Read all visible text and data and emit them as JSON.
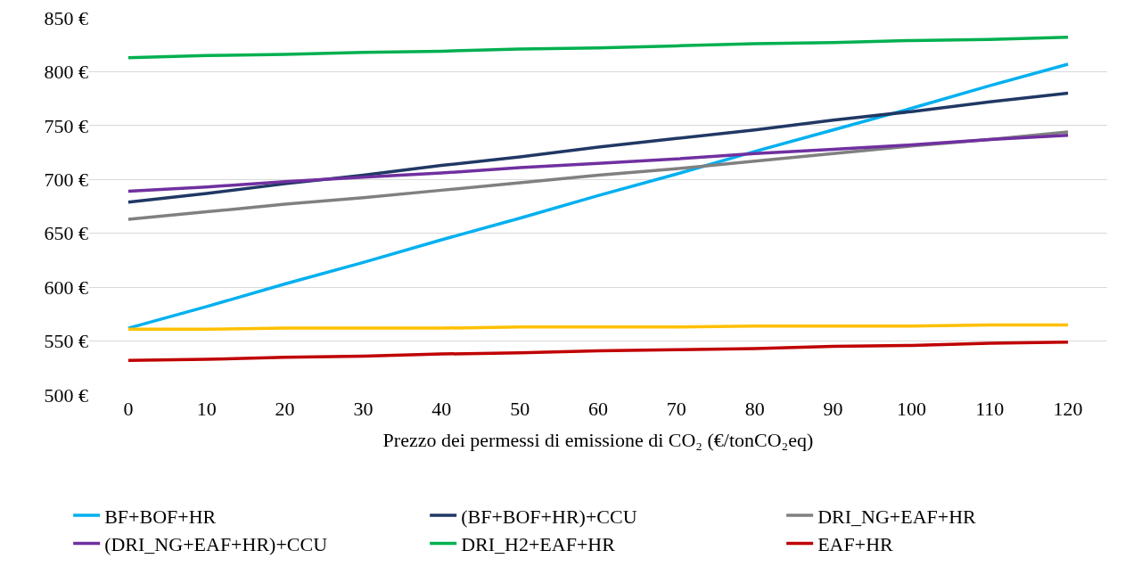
{
  "chart_data": {
    "type": "line",
    "xlabel": "Prezzo dei permessi di emissione di CO₂ (€/tonCO₂eq)",
    "categories": [
      "0",
      "10",
      "20",
      "30",
      "40",
      "50",
      "60",
      "70",
      "80",
      "90",
      "100",
      "110",
      "120"
    ],
    "series": [
      {
        "name": "BF+BOF+HR",
        "color": "#00b0f0",
        "values": [
          562,
          582,
          603,
          623,
          644,
          664,
          685,
          705,
          726,
          746,
          766,
          787,
          807
        ]
      },
      {
        "name": "(BF+BOF+HR)+CCU",
        "color": "#203864",
        "values": [
          679,
          687,
          696,
          704,
          713,
          721,
          730,
          738,
          746,
          755,
          763,
          772,
          780
        ]
      },
      {
        "name": "DRI_NG+EAF+HR",
        "color": "#808080",
        "values": [
          663,
          670,
          677,
          683,
          690,
          697,
          704,
          710,
          717,
          724,
          731,
          737,
          744
        ]
      },
      {
        "name": "(DRI_NG+EAF+HR)+CCU",
        "color": "#7030a0",
        "values": [
          689,
          693,
          698,
          702,
          706,
          711,
          715,
          719,
          724,
          728,
          732,
          737,
          741
        ]
      },
      {
        "name": "DRI_H2+EAF+HR",
        "color": "#00b050",
        "values": [
          813,
          815,
          816,
          818,
          819,
          821,
          822,
          824,
          826,
          827,
          829,
          830,
          832
        ]
      },
      {
        "name": "EAF+HR",
        "color": "#c00000",
        "values": [
          532,
          533,
          535,
          536,
          538,
          539,
          541,
          542,
          543,
          545,
          546,
          548,
          549
        ]
      },
      {
        "color": "#ffc000",
        "values": [
          561,
          561,
          562,
          562,
          562,
          563,
          563,
          563,
          564,
          564,
          564,
          565,
          565
        ]
      }
    ],
    "ylim": [
      500,
      850
    ],
    "yticks": [
      {
        "value": 500,
        "label": "500 €"
      },
      {
        "value": 550,
        "label": "550 €"
      },
      {
        "value": 600,
        "label": "600 €"
      },
      {
        "value": 650,
        "label": "650 €"
      },
      {
        "value": 700,
        "label": "700 €"
      },
      {
        "value": 750,
        "label": "750 €"
      },
      {
        "value": 800,
        "label": "800 €"
      },
      {
        "value": 850,
        "label": "850 €"
      }
    ],
    "grid": "y",
    "legend": "bottom",
    "marker": "none",
    "line_style": "solid"
  }
}
